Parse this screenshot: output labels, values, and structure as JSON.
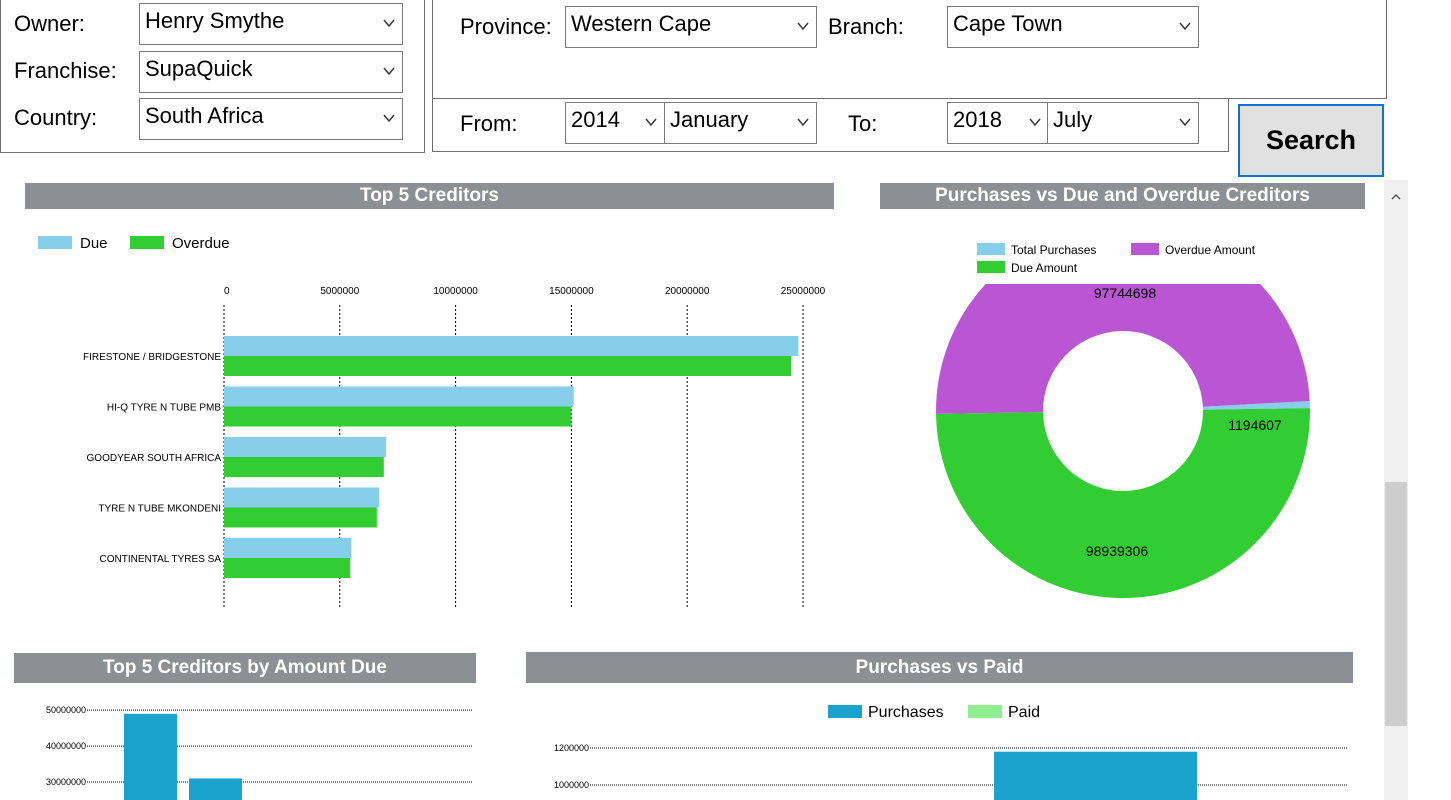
{
  "filters": {
    "owner_label": "Owner:",
    "owner_value": "Henry Smythe",
    "franchise_label": "Franchise:",
    "franchise_value": "SupaQuick",
    "country_label": "Country:",
    "country_value": "South Africa",
    "province_label": "Province:",
    "province_value": "Western Cape",
    "branch_label": "Branch:",
    "branch_value": "Cape Town",
    "from_label": "From:",
    "from_year": "2014",
    "from_month": "January",
    "to_label": "To:",
    "to_year": "2018",
    "to_month": "July",
    "search_label": "Search"
  },
  "icons": {
    "dropdown": "chevron-down-icon",
    "scroll_up": "caret-up-icon"
  },
  "colors": {
    "title_bar": "#8c8f93",
    "due": "#87ceeb",
    "overdue": "#32cd32",
    "total_purchases": "#87ceeb",
    "overdue_amount": "#ba55d3",
    "due_amount": "#32cd32",
    "purchases": "#1aa3cc",
    "paid": "#90ee90",
    "button_border": "#0a74d4"
  },
  "chart_data": [
    {
      "type": "bar",
      "orientation": "horizontal",
      "title": "Top 5 Creditors",
      "categories": [
        "FIRESTONE / BRIDGESTONE",
        "HI-Q TYRE N TUBE PMB",
        "GOODYEAR SOUTH AFRICA",
        "TYRE N TUBE MKONDENI",
        "CONTINENTAL TYRES SA"
      ],
      "series": [
        {
          "name": "Due",
          "values": [
            24800000,
            15100000,
            7000000,
            6700000,
            5500000
          ]
        },
        {
          "name": "Overdue",
          "values": [
            24500000,
            15000000,
            6900000,
            6600000,
            5450000
          ]
        }
      ],
      "xticks": [
        "0",
        "5000000",
        "10000000",
        "15000000",
        "20000000",
        "25000000"
      ],
      "xlim": [
        0,
        25000000
      ],
      "legend": "top-left",
      "grid": true
    },
    {
      "type": "pie",
      "donut": true,
      "title": "Purchases vs Due and Overdue Creditors",
      "slices": [
        {
          "name": "Total Purchases",
          "value": 1194607,
          "label": "1194607"
        },
        {
          "name": "Overdue Amount",
          "value": 97744698,
          "label": "97744698"
        },
        {
          "name": "Due Amount",
          "value": 98939306,
          "label": "98939306"
        }
      ],
      "legend": "top"
    },
    {
      "type": "bar",
      "title": "Top 5 Creditors by Amount Due",
      "yticks": [
        "50000000",
        "40000000",
        "30000000"
      ],
      "values": [
        49000000,
        31000000
      ],
      "ylim_visible": [
        25000000,
        52000000
      ],
      "grid": true
    },
    {
      "type": "bar",
      "title": "Purchases vs Paid",
      "series": [
        {
          "name": "Purchases",
          "values": [
            1180000
          ]
        },
        {
          "name": "Paid",
          "values": []
        }
      ],
      "yticks": [
        "1200000",
        "1000000"
      ],
      "legend": "top",
      "grid": true
    }
  ]
}
